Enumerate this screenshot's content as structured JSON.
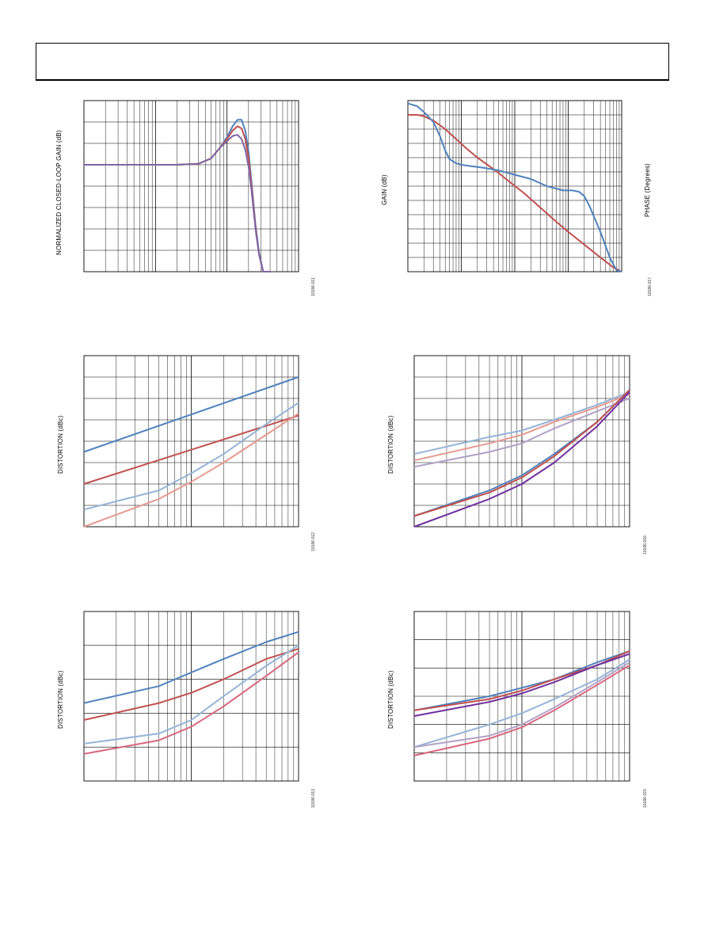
{
  "page": {},
  "chart_data": [
    {
      "type": "line",
      "ylabel": "NORMALIZED CLOSED-LOOP GAIN (dB)",
      "figure_id": "10186-011",
      "x_scale": "log",
      "xlim": [
        1,
        1000
      ],
      "ylim": [
        0,
        8
      ],
      "series": [
        {
          "color": "#4f81bd",
          "x": [
            1,
            10,
            20,
            40,
            60,
            80,
            100,
            120,
            140,
            160,
            180,
            200,
            220,
            250,
            280,
            320,
            400
          ],
          "y": [
            5.0,
            5.0,
            5.0,
            5.05,
            5.3,
            5.8,
            6.3,
            6.8,
            7.1,
            7.1,
            6.6,
            5.6,
            4.2,
            2.2,
            0.9,
            0.0,
            -1.0
          ]
        },
        {
          "color": "#c0504d",
          "x": [
            1,
            10,
            20,
            40,
            60,
            80,
            100,
            120,
            140,
            160,
            180,
            200,
            220,
            250,
            280,
            320,
            400
          ],
          "y": [
            5.0,
            5.0,
            5.0,
            5.05,
            5.3,
            5.8,
            6.2,
            6.6,
            6.8,
            6.7,
            6.2,
            5.3,
            4.0,
            2.1,
            0.8,
            0.0,
            -1.0
          ]
        },
        {
          "color": "#8064a2",
          "x": [
            1,
            10,
            20,
            40,
            60,
            80,
            100,
            120,
            140,
            160,
            180,
            200,
            220,
            250,
            280,
            320,
            400
          ],
          "y": [
            5.0,
            5.0,
            5.0,
            5.05,
            5.3,
            5.8,
            6.1,
            6.35,
            6.4,
            6.2,
            5.7,
            4.9,
            3.8,
            2.0,
            0.8,
            0.0,
            -1.0
          ]
        }
      ]
    },
    {
      "type": "line",
      "ylabel": "GAIN (dB)",
      "ylabel_right": "PHASE (Degrees)",
      "figure_id": "10186-017",
      "x_scale": "log",
      "xlim": [
        1,
        10000
      ],
      "ylim": [
        0,
        12
      ],
      "series": [
        {
          "color": "#c0504d",
          "x": [
            1,
            1.5,
            2,
            3,
            5,
            8,
            12,
            20,
            40,
            80,
            150,
            300,
            600,
            1000,
            2000,
            4000,
            7000,
            10000
          ],
          "y": [
            11.0,
            11.0,
            10.9,
            10.6,
            10.0,
            9.3,
            8.7,
            8.0,
            7.2,
            6.3,
            5.5,
            4.5,
            3.5,
            2.8,
            1.9,
            1.0,
            0.3,
            -0.2
          ]
        },
        {
          "color": "#4f81bd",
          "x": [
            1,
            1.5,
            2,
            3,
            4,
            5,
            6,
            8,
            10,
            15,
            25,
            50,
            100,
            200,
            400,
            800,
            1200,
            1600,
            2000,
            2500,
            3000,
            4000,
            5000,
            6000,
            7000,
            8000,
            10000
          ],
          "y": [
            11.8,
            11.6,
            11.2,
            10.5,
            9.5,
            8.5,
            7.9,
            7.6,
            7.5,
            7.4,
            7.3,
            7.1,
            6.8,
            6.5,
            6.0,
            5.7,
            5.7,
            5.6,
            5.3,
            4.6,
            3.9,
            2.8,
            1.8,
            1.0,
            0.5,
            0.1,
            -0.3
          ]
        }
      ]
    },
    {
      "type": "line",
      "ylabel": "DISTORTION (dBc)",
      "figure_id": "10186-012",
      "x_scale": "log",
      "xlim": [
        1,
        100
      ],
      "ylim": [
        0,
        8
      ],
      "series": [
        {
          "color": "#4f81bd",
          "x": [
            1,
            100
          ],
          "y": [
            3.5,
            7.0
          ]
        },
        {
          "color": "#c0504d",
          "x": [
            1,
            100
          ],
          "y": [
            2.0,
            5.2
          ]
        },
        {
          "color": "#95b3d7",
          "x": [
            1,
            5,
            10,
            20,
            50,
            100
          ],
          "y": [
            0.8,
            1.7,
            2.5,
            3.4,
            4.8,
            5.8
          ]
        },
        {
          "color": "#e6998f",
          "x": [
            1,
            5,
            10,
            20,
            50,
            100
          ],
          "y": [
            0.0,
            1.3,
            2.1,
            3.0,
            4.3,
            5.3
          ]
        }
      ]
    },
    {
      "type": "line",
      "ylabel": "DISTORTION (dBc)",
      "figure_id": "10186-016",
      "x_scale": "log",
      "xlim": [
        1,
        100
      ],
      "ylim": [
        0,
        8
      ],
      "series": [
        {
          "color": "#95b3d7",
          "x": [
            1,
            5,
            10,
            20,
            50,
            100
          ],
          "y": [
            3.4,
            4.2,
            4.5,
            5.0,
            5.7,
            6.3
          ]
        },
        {
          "color": "#e6998f",
          "x": [
            1,
            5,
            10,
            20,
            50,
            100
          ],
          "y": [
            3.1,
            3.9,
            4.3,
            4.9,
            5.6,
            6.2
          ]
        },
        {
          "color": "#b2a1c7",
          "x": [
            1,
            5,
            10,
            20,
            50,
            100
          ],
          "y": [
            2.8,
            3.5,
            3.9,
            4.6,
            5.4,
            6.0
          ]
        },
        {
          "color": "#4f81bd",
          "x": [
            1,
            5,
            10,
            20,
            50,
            100
          ],
          "y": [
            0.5,
            1.7,
            2.4,
            3.4,
            4.9,
            6.4
          ]
        },
        {
          "color": "#c0504d",
          "x": [
            1,
            5,
            10,
            20,
            50,
            100
          ],
          "y": [
            0.5,
            1.6,
            2.3,
            3.3,
            4.9,
            6.4
          ]
        },
        {
          "color": "#7030a0",
          "x": [
            1,
            5,
            10,
            20,
            50,
            100
          ],
          "y": [
            0.0,
            1.3,
            2.0,
            3.0,
            4.7,
            6.3
          ]
        }
      ]
    },
    {
      "type": "line",
      "ylabel": "DISTORTION (dBc)",
      "figure_id": "10186-013",
      "x_scale": "log",
      "xlim": [
        1,
        100
      ],
      "ylim": [
        0,
        5
      ],
      "series": [
        {
          "color": "#4f81bd",
          "x": [
            1,
            5,
            10,
            20,
            50,
            100
          ],
          "y": [
            2.3,
            2.8,
            3.2,
            3.6,
            4.1,
            4.4
          ]
        },
        {
          "color": "#c0504d",
          "x": [
            1,
            5,
            10,
            20,
            50,
            100
          ],
          "y": [
            1.8,
            2.3,
            2.6,
            3.0,
            3.6,
            3.9
          ]
        },
        {
          "color": "#95b3d7",
          "x": [
            1,
            5,
            10,
            20,
            50,
            100
          ],
          "y": [
            1.1,
            1.4,
            1.8,
            2.5,
            3.4,
            4.0
          ]
        },
        {
          "color": "#d9667e",
          "x": [
            1,
            5,
            10,
            20,
            50,
            100
          ],
          "y": [
            0.8,
            1.2,
            1.6,
            2.2,
            3.1,
            3.8
          ]
        }
      ]
    },
    {
      "type": "line",
      "ylabel": "DISTORTION (dBc)",
      "figure_id": "10186-015",
      "x_scale": "log",
      "xlim": [
        1,
        100
      ],
      "ylim": [
        0,
        6
      ],
      "series": [
        {
          "color": "#4f81bd",
          "x": [
            1,
            5,
            10,
            20,
            50,
            100
          ],
          "y": [
            2.5,
            3.0,
            3.3,
            3.6,
            4.2,
            4.6
          ]
        },
        {
          "color": "#c0504d",
          "x": [
            1,
            5,
            10,
            20,
            50,
            100
          ],
          "y": [
            2.5,
            2.9,
            3.2,
            3.6,
            4.1,
            4.6
          ]
        },
        {
          "color": "#7030a0",
          "x": [
            1,
            5,
            10,
            20,
            50,
            100
          ],
          "y": [
            2.3,
            2.8,
            3.1,
            3.5,
            4.1,
            4.5
          ]
        },
        {
          "color": "#95b3d7",
          "x": [
            1,
            5,
            10,
            20,
            50,
            100
          ],
          "y": [
            1.2,
            2.0,
            2.4,
            2.9,
            3.6,
            4.3
          ]
        },
        {
          "color": "#b2a1c7",
          "x": [
            1,
            5,
            10,
            20,
            50,
            100
          ],
          "y": [
            1.2,
            1.6,
            2.0,
            2.6,
            3.5,
            4.2
          ]
        },
        {
          "color": "#d9667e",
          "x": [
            1,
            5,
            10,
            20,
            50,
            100
          ],
          "y": [
            0.9,
            1.5,
            1.9,
            2.5,
            3.4,
            4.1
          ]
        }
      ]
    }
  ]
}
